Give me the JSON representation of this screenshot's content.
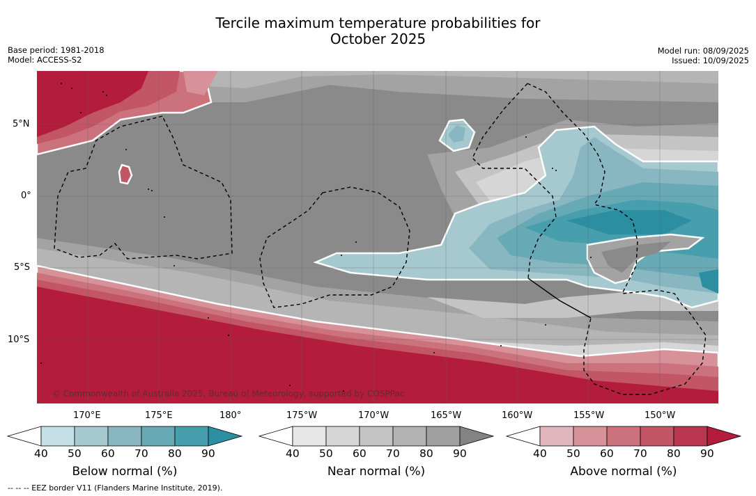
{
  "title_line1": "Tercile maximum temperature probabilities for",
  "title_line2": "October 2025",
  "base_period": "Base period: 1981-2018",
  "model": "Model: ACCESS-S2",
  "model_run": "Model run: 08/09/2025",
  "issued": "Issued: 10/09/2025",
  "copyright": "© Commonwealth of Australia 2025, Bureau of Meteorology, supported by COSPPac",
  "lat_labels": [
    "5°N",
    "0°",
    "5°S",
    "10°S"
  ],
  "lon_labels": [
    "170°E",
    "175°E",
    "180°",
    "175°W",
    "170°W",
    "165°W",
    "160°W",
    "155°W",
    "150°W"
  ],
  "colorbars": [
    {
      "label": "Below normal (%)",
      "ticks": [
        "40",
        "50",
        "60",
        "70",
        "80",
        "90"
      ],
      "colors": [
        "#c5dfe6",
        "#a6c8cf",
        "#88b7c2",
        "#68a9b6",
        "#479fae",
        "#2c8ea1"
      ]
    },
    {
      "label": "Near normal (%)",
      "ticks": [
        "40",
        "50",
        "60",
        "70",
        "80",
        "90"
      ],
      "colors": [
        "#e7e7e7",
        "#d6d6d6",
        "#c4c4c4",
        "#b3b3b3",
        "#a0a0a0",
        "#838383"
      ]
    },
    {
      "label": "Above normal (%)",
      "ticks": [
        "40",
        "50",
        "60",
        "70",
        "80",
        "90"
      ],
      "colors": [
        "#e1b7bd",
        "#d79198",
        "#cb727d",
        "#c25665",
        "#b83650",
        "#b31c3a"
      ]
    }
  ],
  "footnote": "--  --  -- EEZ border V11 (Flanders Marine Institute, 2019)."
}
